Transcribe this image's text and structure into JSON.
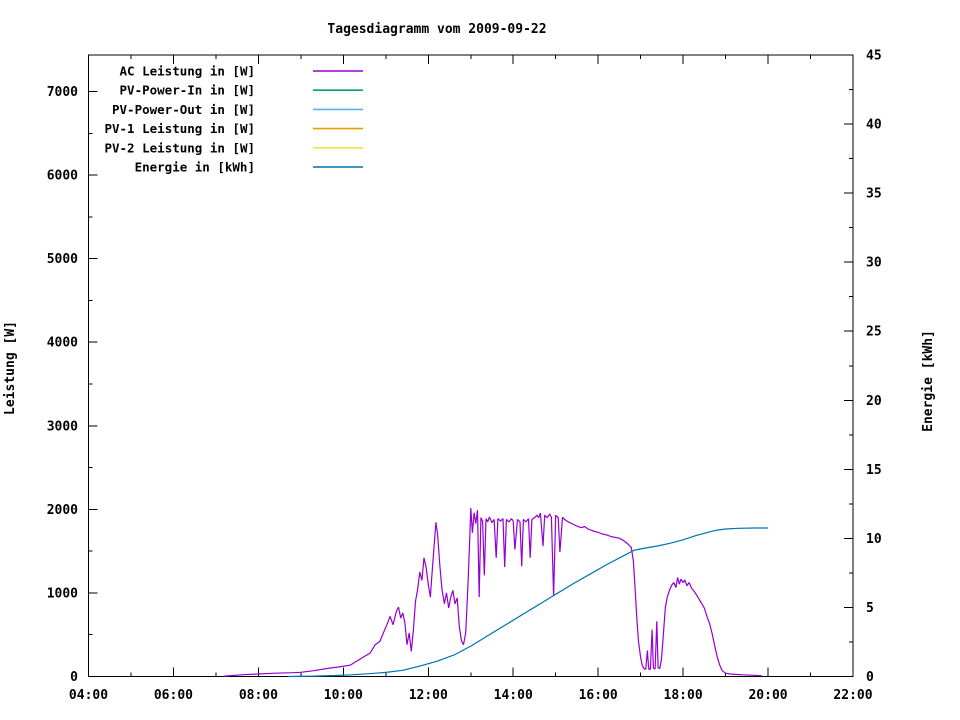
{
  "window": {
    "background": "#ffffff"
  },
  "chart_data": {
    "type": "line",
    "title": "Tagesdiagramm vom 2009-09-22",
    "xlabel": "",
    "ylabel": "Leistung [W]",
    "y2label": "Energie [kWh]",
    "grid": false,
    "legend_position": "top-left-inside",
    "x_range_hours": [
      4,
      22
    ],
    "x_tick_hours": [
      4,
      6,
      8,
      10,
      12,
      14,
      16,
      18,
      20,
      22
    ],
    "x_tick_labels": [
      "04:00",
      "06:00",
      "08:00",
      "10:00",
      "12:00",
      "14:00",
      "16:00",
      "18:00",
      "20:00",
      "22:00"
    ],
    "x_minor_hours": [
      5,
      7,
      9,
      11,
      13,
      15,
      17,
      19,
      21
    ],
    "y1_axis": {
      "min": 0,
      "max": 7437,
      "ticks": [
        0,
        1000,
        2000,
        3000,
        4000,
        5000,
        6000,
        7000
      ],
      "tick_labels": [
        "0",
        "1000",
        "2000",
        "3000",
        "4000",
        "5000",
        "6000",
        "7000"
      ],
      "minor_step": 500
    },
    "y2_axis": {
      "min": 0,
      "max": 45,
      "ticks": [
        0,
        5,
        10,
        15,
        20,
        25,
        30,
        35,
        40,
        45
      ],
      "tick_labels": [
        "0",
        "5",
        "10",
        "15",
        "20",
        "25",
        "30",
        "35",
        "40",
        "45"
      ],
      "minor_step": 2.5
    },
    "series": [
      {
        "name": "AC Leistung in [W]",
        "color": "#9400d3",
        "axis": "y1",
        "points": [
          [
            7.2,
            5
          ],
          [
            7.6,
            20
          ],
          [
            8.0,
            30
          ],
          [
            8.4,
            40
          ],
          [
            8.8,
            45
          ],
          [
            9.0,
            50
          ],
          [
            9.3,
            70
          ],
          [
            9.6,
            95
          ],
          [
            9.9,
            115
          ],
          [
            10.16,
            135
          ],
          [
            10.3,
            180
          ],
          [
            10.5,
            240
          ],
          [
            10.63,
            280
          ],
          [
            10.75,
            380
          ],
          [
            10.86,
            420
          ],
          [
            10.95,
            530
          ],
          [
            11.05,
            650
          ],
          [
            11.1,
            720
          ],
          [
            11.17,
            620
          ],
          [
            11.25,
            780
          ],
          [
            11.3,
            830
          ],
          [
            11.35,
            700
          ],
          [
            11.4,
            760
          ],
          [
            11.45,
            640
          ],
          [
            11.5,
            380
          ],
          [
            11.55,
            520
          ],
          [
            11.6,
            300
          ],
          [
            11.65,
            560
          ],
          [
            11.7,
            900
          ],
          [
            11.75,
            1050
          ],
          [
            11.8,
            1250
          ],
          [
            11.85,
            1150
          ],
          [
            11.9,
            1420
          ],
          [
            11.95,
            1300
          ],
          [
            12.0,
            1100
          ],
          [
            12.05,
            950
          ],
          [
            12.08,
            1180
          ],
          [
            12.12,
            1450
          ],
          [
            12.18,
            1845
          ],
          [
            12.22,
            1700
          ],
          [
            12.27,
            1350
          ],
          [
            12.32,
            1050
          ],
          [
            12.38,
            870
          ],
          [
            12.43,
            1000
          ],
          [
            12.48,
            820
          ],
          [
            12.53,
            950
          ],
          [
            12.58,
            1030
          ],
          [
            12.63,
            870
          ],
          [
            12.68,
            940
          ],
          [
            12.73,
            600
          ],
          [
            12.78,
            430
          ],
          [
            12.83,
            380
          ],
          [
            12.88,
            520
          ],
          [
            12.93,
            1050
          ],
          [
            12.98,
            1700
          ],
          [
            13.0,
            2015
          ],
          [
            13.04,
            1720
          ],
          [
            13.08,
            1960
          ],
          [
            13.12,
            1830
          ],
          [
            13.16,
            1990
          ],
          [
            13.2,
            950
          ],
          [
            13.24,
            1900
          ],
          [
            13.28,
            1860
          ],
          [
            13.32,
            1210
          ],
          [
            13.36,
            1890
          ],
          [
            13.4,
            1850
          ],
          [
            13.44,
            1910
          ],
          [
            13.5,
            1840
          ],
          [
            13.55,
            1880
          ],
          [
            13.6,
            1420
          ],
          [
            13.64,
            1890
          ],
          [
            13.7,
            1860
          ],
          [
            13.76,
            1890
          ],
          [
            13.8,
            1310
          ],
          [
            13.84,
            1880
          ],
          [
            13.9,
            1850
          ],
          [
            13.96,
            1890
          ],
          [
            14.0,
            1860
          ],
          [
            14.04,
            1520
          ],
          [
            14.1,
            1880
          ],
          [
            14.16,
            1850
          ],
          [
            14.2,
            1320
          ],
          [
            14.24,
            1880
          ],
          [
            14.3,
            1850
          ],
          [
            14.36,
            1890
          ],
          [
            14.4,
            1420
          ],
          [
            14.44,
            1880
          ],
          [
            14.5,
            1900
          ],
          [
            14.56,
            1930
          ],
          [
            14.6,
            1900
          ],
          [
            14.64,
            1955
          ],
          [
            14.7,
            1560
          ],
          [
            14.74,
            1930
          ],
          [
            14.8,
            1900
          ],
          [
            14.86,
            1945
          ],
          [
            14.9,
            1905
          ],
          [
            14.95,
            960
          ],
          [
            15.0,
            1930
          ],
          [
            15.06,
            1900
          ],
          [
            15.1,
            1490
          ],
          [
            15.16,
            1905
          ],
          [
            15.22,
            1875
          ],
          [
            15.3,
            1850
          ],
          [
            15.4,
            1825
          ],
          [
            15.5,
            1800
          ],
          [
            15.6,
            1780
          ],
          [
            15.68,
            1795
          ],
          [
            15.76,
            1765
          ],
          [
            15.84,
            1750
          ],
          [
            15.92,
            1735
          ],
          [
            16.0,
            1725
          ],
          [
            16.1,
            1705
          ],
          [
            16.2,
            1695
          ],
          [
            16.3,
            1675
          ],
          [
            16.4,
            1665
          ],
          [
            16.5,
            1655
          ],
          [
            16.6,
            1625
          ],
          [
            16.7,
            1585
          ],
          [
            16.78,
            1545
          ],
          [
            16.83,
            1380
          ],
          [
            16.87,
            1050
          ],
          [
            16.91,
            700
          ],
          [
            16.95,
            420
          ],
          [
            17.0,
            230
          ],
          [
            17.04,
            130
          ],
          [
            17.08,
            95
          ],
          [
            17.12,
            85
          ],
          [
            17.16,
            310
          ],
          [
            17.19,
            90
          ],
          [
            17.23,
            85
          ],
          [
            17.27,
            560
          ],
          [
            17.3,
            100
          ],
          [
            17.34,
            90
          ],
          [
            17.38,
            660
          ],
          [
            17.41,
            105
          ],
          [
            17.45,
            95
          ],
          [
            17.49,
            210
          ],
          [
            17.53,
            460
          ],
          [
            17.58,
            820
          ],
          [
            17.63,
            960
          ],
          [
            17.68,
            1030
          ],
          [
            17.73,
            1090
          ],
          [
            17.78,
            1125
          ],
          [
            17.83,
            1065
          ],
          [
            17.87,
            1185
          ],
          [
            17.91,
            1105
          ],
          [
            17.95,
            1165
          ],
          [
            18.0,
            1125
          ],
          [
            18.04,
            1155
          ],
          [
            18.09,
            1085
          ],
          [
            18.14,
            1125
          ],
          [
            18.2,
            1055
          ],
          [
            18.28,
            1005
          ],
          [
            18.36,
            940
          ],
          [
            18.44,
            870
          ],
          [
            18.5,
            820
          ],
          [
            18.56,
            720
          ],
          [
            18.62,
            640
          ],
          [
            18.68,
            520
          ],
          [
            18.74,
            380
          ],
          [
            18.8,
            240
          ],
          [
            18.86,
            140
          ],
          [
            18.92,
            70
          ],
          [
            19.0,
            40
          ],
          [
            19.1,
            30
          ],
          [
            19.25,
            25
          ],
          [
            19.4,
            20
          ],
          [
            19.6,
            15
          ],
          [
            19.85,
            10
          ]
        ]
      },
      {
        "name": "PV-Power-In in [W]",
        "color": "#009e73",
        "axis": "y1",
        "points": []
      },
      {
        "name": "PV-Power-Out in [W]",
        "color": "#56b4e9",
        "axis": "y1",
        "points": []
      },
      {
        "name": "PV-1 Leistung in [W]",
        "color": "#e69f00",
        "axis": "y1",
        "points": []
      },
      {
        "name": "PV-2 Leistung in [W]",
        "color": "#f0e442",
        "axis": "y1",
        "points": []
      },
      {
        "name": "Energie in [kWh]",
        "color": "#0072b2",
        "axis": "y2",
        "points": [
          [
            8.7,
            0
          ],
          [
            9.3,
            0.03
          ],
          [
            9.8,
            0.07
          ],
          [
            10.2,
            0.12
          ],
          [
            10.6,
            0.2
          ],
          [
            11.0,
            0.3
          ],
          [
            11.4,
            0.45
          ],
          [
            11.8,
            0.75
          ],
          [
            12.2,
            1.1
          ],
          [
            12.6,
            1.55
          ],
          [
            13.0,
            2.2
          ],
          [
            13.4,
            2.95
          ],
          [
            13.8,
            3.7
          ],
          [
            14.2,
            4.45
          ],
          [
            14.6,
            5.2
          ],
          [
            15.0,
            5.95
          ],
          [
            15.4,
            6.7
          ],
          [
            15.8,
            7.4
          ],
          [
            16.2,
            8.1
          ],
          [
            16.6,
            8.75
          ],
          [
            16.85,
            9.15
          ],
          [
            17.1,
            9.3
          ],
          [
            17.4,
            9.45
          ],
          [
            17.7,
            9.65
          ],
          [
            18.0,
            9.9
          ],
          [
            18.3,
            10.2
          ],
          [
            18.6,
            10.45
          ],
          [
            18.8,
            10.6
          ],
          [
            19.0,
            10.68
          ],
          [
            19.3,
            10.73
          ],
          [
            19.7,
            10.75
          ],
          [
            20.0,
            10.75
          ]
        ]
      }
    ],
    "axis_color": "#000000"
  }
}
